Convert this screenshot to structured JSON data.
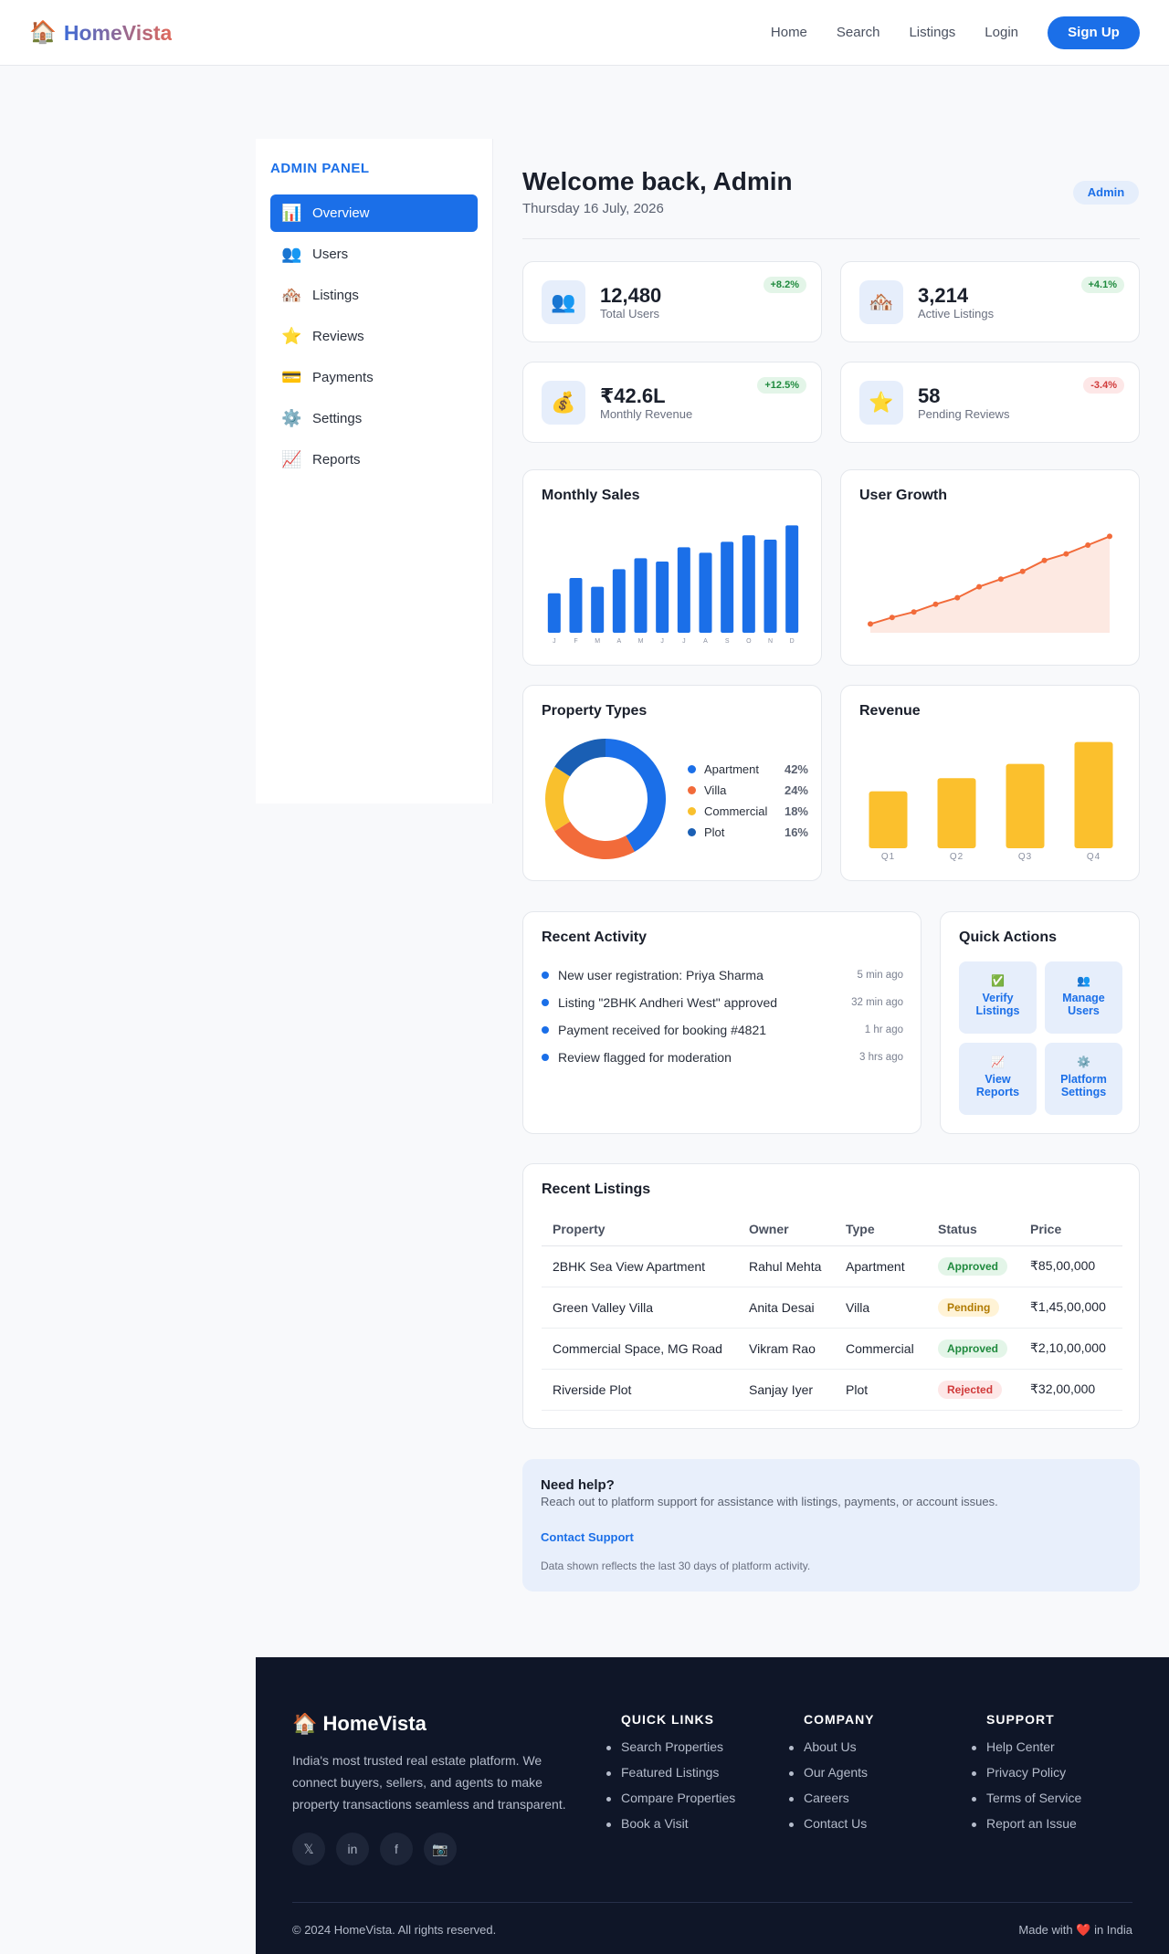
{
  "header": {
    "logo_icon": "house-icon",
    "logo_text": "HomeVista",
    "nav": [
      "Home",
      "Search",
      "Listings",
      "Login"
    ],
    "signup": "Sign Up"
  },
  "sidebar": {
    "title": "ADMIN PANEL",
    "items": [
      {
        "icon": "📊",
        "label": "Overview",
        "active": true
      },
      {
        "icon": "👥",
        "label": "Users"
      },
      {
        "icon": "🏘️",
        "label": "Listings"
      },
      {
        "icon": "⭐",
        "label": "Reviews"
      },
      {
        "icon": "💳",
        "label": "Payments"
      },
      {
        "icon": "⚙️",
        "label": "Settings"
      },
      {
        "icon": "📈",
        "label": "Reports"
      }
    ]
  },
  "main": {
    "welcome": "Welcome back, Admin",
    "date": "Thursday 16 July, 2026",
    "role": "Admin"
  },
  "stats": [
    {
      "icon": "👥",
      "value": "12,480",
      "label": "Total Users",
      "trend": "+8.2%"
    },
    {
      "icon": "🏘️",
      "value": "3,214",
      "label": "Active Listings",
      "trend": "+4.1%"
    },
    {
      "icon": "💰",
      "value": "₹42.6L",
      "label": "Monthly Revenue",
      "trend": "+12.5%"
    },
    {
      "icon": "⭐",
      "value": "58",
      "label": "Pending Reviews",
      "trend": "-3.4%"
    }
  ],
  "chart_data": [
    {
      "type": "bar",
      "title": "Monthly Sales",
      "categories": [
        "J",
        "F",
        "M",
        "A",
        "M",
        "J",
        "J",
        "A",
        "S",
        "O",
        "N",
        "D"
      ],
      "values": [
        36,
        50,
        42,
        58,
        68,
        65,
        78,
        73,
        83,
        89,
        85,
        98
      ],
      "ylim": [
        0,
        100
      ],
      "color": "#1b6fe8"
    },
    {
      "type": "area",
      "title": "User Growth",
      "x": [
        1,
        2,
        3,
        4,
        5,
        6,
        7,
        8,
        9,
        10,
        11,
        12
      ],
      "values": [
        8,
        14,
        19,
        26,
        32,
        42,
        49,
        56,
        66,
        72,
        80,
        88
      ],
      "ylim": [
        0,
        100
      ],
      "line_color": "#f26b3a",
      "fill_color": "#fde9e2"
    },
    {
      "type": "pie",
      "title": "Property Types",
      "series": [
        {
          "name": "Apartment",
          "value": 42,
          "label": "42%",
          "color": "#1b6fe8"
        },
        {
          "name": "Villa",
          "value": 24,
          "label": "24%",
          "color": "#f26b3a"
        },
        {
          "name": "Commercial",
          "value": 18,
          "label": "18%",
          "color": "#f9c02d"
        },
        {
          "name": "Plot",
          "value": 16,
          "label": "16%",
          "color": "#1a5fb4"
        }
      ]
    },
    {
      "type": "bar",
      "title": "Revenue",
      "categories": [
        "Q1",
        "Q2",
        "Q3",
        "Q4"
      ],
      "values": [
        52,
        64,
        77,
        97
      ],
      "ylim": [
        0,
        100
      ],
      "color": "#fbc02d"
    }
  ],
  "activity": {
    "title": "Recent Activity",
    "items": [
      {
        "text": "New user registration: Priya Sharma",
        "time": "5 min ago"
      },
      {
        "text": "Listing \"2BHK Andheri West\" approved",
        "time": "32 min ago"
      },
      {
        "text": "Payment received for booking #4821",
        "time": "1 hr ago"
      },
      {
        "text": "Review flagged for moderation",
        "time": "3 hrs ago"
      }
    ]
  },
  "quick_actions": {
    "title": "Quick Actions",
    "items": [
      {
        "icon": "✅",
        "label_1": "Verify",
        "label_2": "Listings"
      },
      {
        "icon": "👥",
        "label_1": "Manage",
        "label_2": "Users"
      },
      {
        "icon": "📈",
        "label_1": "View",
        "label_2": "Reports"
      },
      {
        "icon": "⚙️",
        "label_1": "Platform",
        "label_2": "Settings"
      }
    ]
  },
  "listings": {
    "title": "Recent Listings",
    "columns": [
      "Property",
      "Owner",
      "Type",
      "Status",
      "Price"
    ],
    "rows": [
      {
        "property": "2BHK Sea View Apartment",
        "owner": "Rahul Mehta",
        "type": "Apartment",
        "status": "Approved",
        "price": "₹85,00,000"
      },
      {
        "property": "Green Valley Villa",
        "owner": "Anita Desai",
        "type": "Villa",
        "status": "Pending",
        "price": "₹1,45,00,000"
      },
      {
        "property": "Commercial Space, MG Road",
        "owner": "Vikram Rao",
        "type": "Commercial",
        "status": "Approved",
        "price": "₹2,10,00,000"
      },
      {
        "property": "Riverside Plot",
        "owner": "Sanjay Iyer",
        "type": "Plot",
        "status": "Rejected",
        "price": "₹32,00,000"
      }
    ]
  },
  "help": {
    "title": "Need help?",
    "text": "Reach out to platform support for assistance with listings, payments, or account issues.",
    "link": "Contact Support",
    "note": "Data shown reflects the last 30 days of platform activity."
  },
  "footer": {
    "brand": "🏠 HomeVista",
    "description": "India's most trusted real estate platform. We connect buyers, sellers, and agents to make property transactions seamless and transparent.",
    "social": [
      "𝕏",
      "in",
      "f",
      "📷"
    ],
    "columns": [
      {
        "title": "QUICK LINKS",
        "links": [
          "Search Properties",
          "Featured Listings",
          "Compare Properties",
          "Book a Visit"
        ]
      },
      {
        "title": "COMPANY",
        "links": [
          "About Us",
          "Our Agents",
          "Careers",
          "Contact Us"
        ]
      },
      {
        "title": "SUPPORT",
        "links": [
          "Help Center",
          "Privacy Policy",
          "Terms of Service",
          "Report an Issue"
        ]
      }
    ],
    "copyright": "© 2024 HomeVista. All rights reserved.",
    "made_with_prefix": "Made with",
    "made_with_heart": "❤️",
    "made_with_suffix": "in India"
  }
}
